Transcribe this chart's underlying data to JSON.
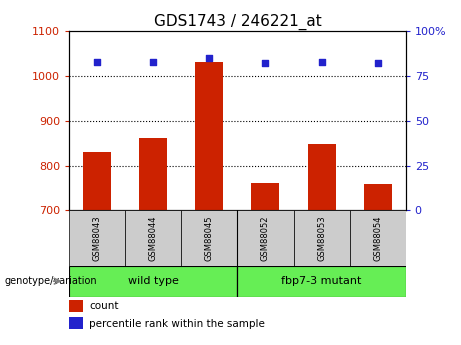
{
  "title": "GDS1743 / 246221_at",
  "categories": [
    "GSM88043",
    "GSM88044",
    "GSM88045",
    "GSM88052",
    "GSM88053",
    "GSM88054"
  ],
  "bar_values": [
    830,
    862,
    1030,
    762,
    848,
    758
  ],
  "percentile_values": [
    83,
    83,
    85,
    82,
    83,
    82
  ],
  "ylim_left": [
    700,
    1100
  ],
  "ylim_right": [
    0,
    100
  ],
  "yticks_left": [
    700,
    800,
    900,
    1000,
    1100
  ],
  "yticks_right": [
    0,
    25,
    50,
    75,
    100
  ],
  "bar_color": "#cc2200",
  "dot_color": "#2222cc",
  "bar_bottom": 700,
  "group_labels": [
    "wild type",
    "fbp7-3 mutant"
  ],
  "group_starts": [
    0,
    3
  ],
  "group_ends": [
    2,
    5
  ],
  "group_color": "#66ee55",
  "sample_box_color": "#cccccc",
  "genotype_label": "genotype/variation",
  "legend_count_label": "count",
  "legend_pct_label": "percentile rank within the sample",
  "tick_label_color_left": "#cc2200",
  "tick_label_color_right": "#2222cc",
  "title_fontsize": 11,
  "bar_width": 0.5
}
